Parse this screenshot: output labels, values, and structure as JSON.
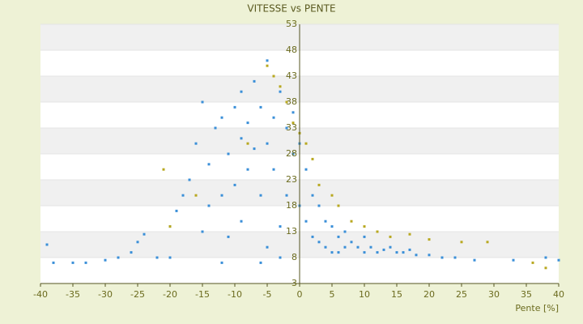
{
  "chart_data": {
    "type": "scatter",
    "title": "VITESSE vs PENTE",
    "x_label": "Pente [%]",
    "xlim": [
      -40,
      40
    ],
    "xticks": [
      -40,
      -35,
      -30,
      -25,
      -20,
      -15,
      -10,
      -5,
      0,
      5,
      10,
      15,
      20,
      25,
      30,
      35,
      40
    ],
    "ylim": [
      3,
      53
    ],
    "yticks": [
      3,
      8,
      13,
      18,
      23,
      28,
      33,
      38,
      43,
      48,
      53
    ],
    "grid": true,
    "series": [
      {
        "color": "#3a8fd8",
        "x": [
          -39,
          -38,
          -35,
          -33,
          -30,
          -28,
          -26,
          -25,
          -24,
          -22,
          -20,
          -19,
          -18,
          -17,
          -16,
          -15,
          -14,
          -13,
          -12,
          -12,
          -11,
          -10,
          -10,
          -9,
          -9,
          -8,
          -8,
          -7,
          -7,
          -6,
          -6,
          -5,
          -5,
          -4,
          -4,
          -3,
          -3,
          -2,
          -2,
          -1,
          -1,
          0,
          0,
          1,
          1,
          2,
          2,
          3,
          3,
          4,
          4,
          5,
          5,
          6,
          6,
          7,
          7,
          8,
          9,
          10,
          10,
          11,
          12,
          13,
          14,
          15,
          16,
          17,
          18,
          20,
          22,
          24,
          27,
          33,
          38,
          40,
          -15,
          -20,
          -12,
          -6,
          -9,
          -3,
          -14,
          -11,
          -5
        ],
        "values": [
          10.5,
          7,
          7,
          7,
          7.5,
          8,
          9,
          11,
          12.5,
          8,
          14,
          17,
          20,
          23,
          30,
          38,
          26,
          33,
          20,
          35,
          28,
          37,
          22,
          31,
          40,
          25,
          34,
          29,
          42,
          37,
          20,
          46,
          30,
          35,
          25,
          40,
          14,
          33,
          20,
          36,
          28,
          30,
          18,
          25,
          15,
          20,
          12,
          18,
          11,
          15,
          10,
          14,
          9,
          12,
          9,
          13,
          10,
          11,
          10,
          9,
          12,
          10,
          9,
          9.5,
          10,
          9,
          9,
          9.5,
          8.5,
          8.5,
          8,
          8,
          7.5,
          7.5,
          8,
          7.5,
          13,
          8,
          7,
          7,
          15,
          8,
          18,
          12,
          10
        ]
      },
      {
        "color": "#b8a820",
        "x": [
          -21,
          -20,
          -16,
          -8,
          -5,
          -4,
          -3,
          -2,
          -1,
          0,
          1,
          2,
          3,
          5,
          6,
          8,
          10,
          12,
          14,
          17,
          20,
          25,
          29,
          36,
          38
        ],
        "values": [
          25,
          14,
          20,
          30,
          45,
          43,
          41,
          38,
          34,
          32,
          30,
          27,
          22,
          20,
          18,
          15,
          14,
          13,
          12,
          12.5,
          11.5,
          11,
          11,
          7,
          6
        ]
      }
    ]
  }
}
